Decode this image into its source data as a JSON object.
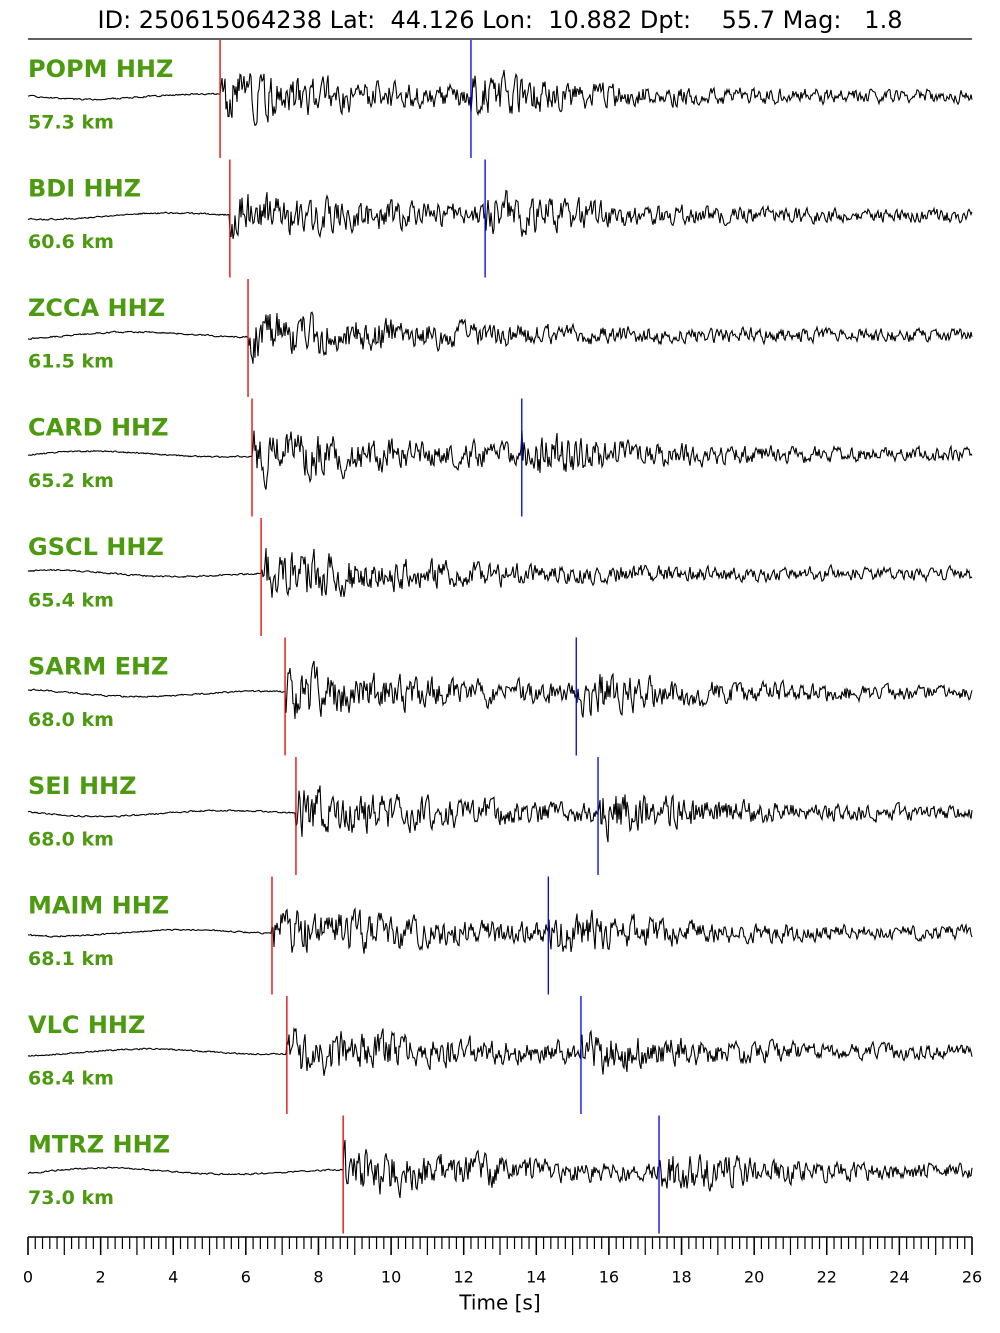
{
  "chart_data": {
    "type": "seismogram",
    "title": "ID: 250615064238 Lat:  44.126 Lon:  10.882 Dpt:    55.7 Mag:   1.8",
    "xlabel": "Time [s]",
    "xlim": [
      0,
      26
    ],
    "xticks": [
      0,
      2,
      4,
      6,
      8,
      10,
      12,
      14,
      16,
      18,
      20,
      22,
      24,
      26
    ],
    "xminor": 0.2,
    "p_color": "#e00000",
    "s_color": "#0000dd",
    "label_color": "#4c9a10",
    "trace_color": "#000000",
    "traces": [
      {
        "name": "POPM HHZ",
        "distance": "57.3 km",
        "p": 5.29,
        "s": 12.2
      },
      {
        "name": "BDI HHZ",
        "distance": "60.6 km",
        "p": 5.56,
        "s": 12.59
      },
      {
        "name": "ZCCA HHZ",
        "distance": "61.5 km",
        "p": 6.06,
        "s": null
      },
      {
        "name": "CARD HHZ",
        "distance": "65.2 km",
        "p": 6.17,
        "s": 13.6
      },
      {
        "name": "GSCL HHZ",
        "distance": "65.4 km",
        "p": 6.42,
        "s": null
      },
      {
        "name": "SARM EHZ",
        "distance": "68.0 km",
        "p": 7.08,
        "s": 15.1
      },
      {
        "name": "SEI HHZ",
        "distance": "68.0 km",
        "p": 7.38,
        "s": 15.7
      },
      {
        "name": "MAIM HHZ",
        "distance": "68.1 km",
        "p": 6.72,
        "s": 14.33
      },
      {
        "name": "VLC HHZ",
        "distance": "68.4 km",
        "p": 7.13,
        "s": 15.23
      },
      {
        "name": "MTRZ HHZ",
        "distance": "73.0 km",
        "p": 8.68,
        "s": 17.38
      }
    ]
  }
}
